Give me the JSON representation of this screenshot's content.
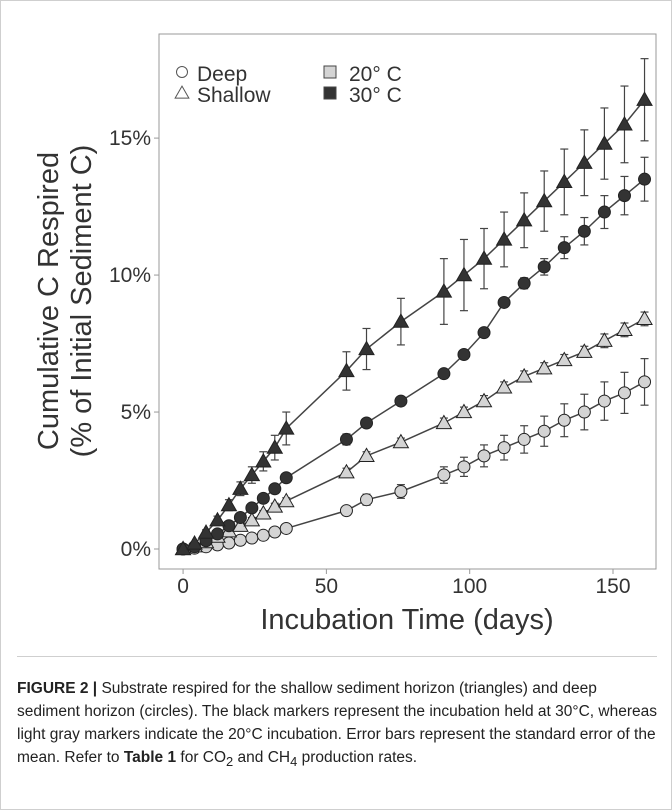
{
  "chart_data": {
    "type": "line-errorbar",
    "xlabel": "Incubation Time (days)",
    "ylabel": [
      "Cumulative C Respired",
      "(% of Initial Sediment C)"
    ],
    "xlim": [
      -8.4,
      165
    ],
    "xticks": [
      0,
      50,
      100,
      150
    ],
    "ylim": [
      -0.73,
      18.8
    ],
    "yticks": [
      {
        "value": 0,
        "label": "0%"
      },
      {
        "value": 5,
        "label": "5%"
      },
      {
        "value": 10,
        "label": "10%"
      },
      {
        "value": 15,
        "label": "15%"
      }
    ],
    "grid": false,
    "legend": {
      "markers": [
        {
          "label": "Deep",
          "marker": "circle"
        },
        {
          "label": "Shallow",
          "marker": "triangle"
        }
      ],
      "colors": [
        {
          "label": "20° C",
          "color": "#d4d4d4"
        },
        {
          "label": "30° C",
          "color": "#333333"
        }
      ]
    },
    "series": [
      {
        "marker": "circle",
        "color": "#d4d4d4",
        "x": [
          0,
          4,
          8,
          12,
          16,
          20,
          24,
          28,
          32,
          36,
          57,
          64,
          76,
          91,
          98,
          105,
          112,
          119,
          126,
          133,
          140,
          147,
          154,
          161
        ],
        "values": [
          0,
          0.03,
          0.08,
          0.15,
          0.22,
          0.32,
          0.4,
          0.5,
          0.62,
          0.75,
          1.4,
          1.8,
          2.1,
          2.7,
          3.0,
          3.4,
          3.7,
          4.0,
          4.3,
          4.7,
          5.0,
          5.4,
          5.7,
          6.1
        ],
        "errors": [
          0,
          0.03,
          0.05,
          0.06,
          0.08,
          0.1,
          0.1,
          0.12,
          0.12,
          0.15,
          0.15,
          0.2,
          0.25,
          0.3,
          0.35,
          0.4,
          0.45,
          0.5,
          0.55,
          0.6,
          0.65,
          0.7,
          0.75,
          0.85
        ]
      },
      {
        "marker": "triangle",
        "color": "#d4d4d4",
        "x": [
          0,
          4,
          8,
          12,
          16,
          20,
          24,
          28,
          32,
          36,
          57,
          64,
          76,
          91,
          98,
          105,
          112,
          119,
          126,
          133,
          140,
          147,
          154,
          161
        ],
        "values": [
          0,
          0.1,
          0.25,
          0.45,
          0.65,
          0.85,
          1.05,
          1.3,
          1.55,
          1.75,
          2.8,
          3.4,
          3.9,
          4.6,
          5.0,
          5.4,
          5.9,
          6.3,
          6.6,
          6.9,
          7.2,
          7.6,
          8.0,
          8.4
        ],
        "errors": [
          0,
          0.03,
          0.05,
          0.06,
          0.08,
          0.1,
          0.1,
          0.1,
          0.12,
          0.12,
          0.15,
          0.15,
          0.15,
          0.18,
          0.18,
          0.2,
          0.2,
          0.2,
          0.2,
          0.2,
          0.2,
          0.25,
          0.25,
          0.25
        ]
      },
      {
        "marker": "circle",
        "color": "#333333",
        "x": [
          0,
          4,
          8,
          12,
          16,
          20,
          24,
          28,
          32,
          36,
          57,
          64,
          76,
          91,
          98,
          105,
          112,
          119,
          126,
          133,
          140,
          147,
          154,
          161
        ],
        "values": [
          0,
          0.08,
          0.3,
          0.55,
          0.85,
          1.15,
          1.5,
          1.85,
          2.2,
          2.6,
          4.0,
          4.6,
          5.4,
          6.4,
          7.1,
          7.9,
          9.0,
          9.7,
          10.3,
          11.0,
          11.6,
          12.3,
          12.9,
          13.5
        ],
        "errors": [
          0,
          0.03,
          0.05,
          0.06,
          0.08,
          0.1,
          0.1,
          0.12,
          0.12,
          0.15,
          0.2,
          0.1,
          0.1,
          0.1,
          0.1,
          0.1,
          0.1,
          0.2,
          0.3,
          0.4,
          0.5,
          0.6,
          0.7,
          0.8
        ]
      },
      {
        "marker": "triangle",
        "color": "#333333",
        "x": [
          0,
          4,
          8,
          12,
          16,
          20,
          24,
          28,
          32,
          36,
          57,
          64,
          76,
          91,
          98,
          105,
          112,
          119,
          126,
          133,
          140,
          147,
          154,
          161
        ],
        "values": [
          0,
          0.2,
          0.6,
          1.05,
          1.6,
          2.2,
          2.7,
          3.2,
          3.7,
          4.4,
          6.5,
          7.3,
          8.3,
          9.4,
          10.0,
          10.6,
          11.3,
          12.0,
          12.7,
          13.4,
          14.1,
          14.8,
          15.5,
          16.4
        ],
        "errors": [
          0,
          0.05,
          0.1,
          0.15,
          0.2,
          0.25,
          0.3,
          0.35,
          0.45,
          0.6,
          0.7,
          0.75,
          0.85,
          1.2,
          1.3,
          1.1,
          1.0,
          1.0,
          1.1,
          1.2,
          1.2,
          1.3,
          1.4,
          1.5
        ]
      }
    ]
  },
  "caption": {
    "label": "FIGURE 2 |",
    "text_1": " Substrate respired for the shallow sediment horizon (triangles) and deep sediment horizon (circles). The black markers represent the incubation held at 30°C, whereas light gray markers indicate the 20°C incubation. Error bars represent the standard error of the mean. Refer to ",
    "table_ref": "Table 1",
    "text_2": " for CO",
    "sub_1": "2",
    "text_3": " and CH",
    "sub_2": "4",
    "text_4": " production rates."
  }
}
